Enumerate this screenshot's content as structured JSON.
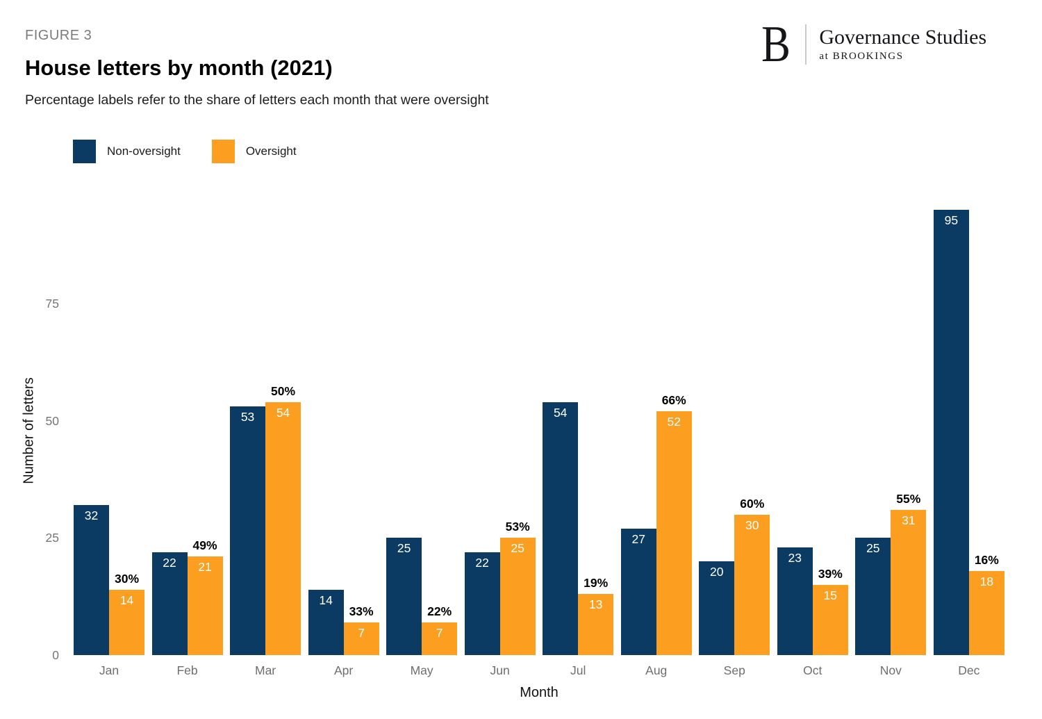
{
  "header": {
    "figure_label": "FIGURE 3",
    "title": "House letters by month (2021)",
    "subtitle": "Percentage labels refer to the share of letters each month that were oversight"
  },
  "logo": {
    "letter": "B",
    "name": "Governance Studies",
    "tagline": "at BROOKINGS"
  },
  "legend": [
    {
      "label": "Non-oversight",
      "color": "#0b3a63"
    },
    {
      "label": "Oversight",
      "color": "#fc9e20"
    }
  ],
  "chart_data": {
    "type": "bar",
    "title": "House letters by month (2021)",
    "categories": [
      "Jan",
      "Feb",
      "Mar",
      "Apr",
      "May",
      "Jun",
      "Jul",
      "Aug",
      "Sep",
      "Oct",
      "Nov",
      "Dec"
    ],
    "series": [
      {
        "name": "Non-oversight",
        "color": "#0b3a63",
        "values": [
          32,
          22,
          53,
          14,
          25,
          22,
          54,
          27,
          20,
          23,
          25,
          95
        ]
      },
      {
        "name": "Oversight",
        "color": "#fc9e20",
        "values": [
          14,
          21,
          54,
          7,
          7,
          25,
          13,
          52,
          30,
          15,
          31,
          18
        ]
      }
    ],
    "pct_labels": [
      "30%",
      "49%",
      "50%",
      "33%",
      "22%",
      "53%",
      "19%",
      "66%",
      "60%",
      "39%",
      "55%",
      "16%"
    ],
    "xlabel": "Month",
    "ylabel": "Number of letters",
    "yticks": [
      0,
      25,
      50,
      75
    ],
    "ylim": [
      0,
      100
    ],
    "grid": false,
    "legend_position": "top-left",
    "value_labels": "inside-top-white",
    "pct_label_position": "above-oversight-bar"
  }
}
